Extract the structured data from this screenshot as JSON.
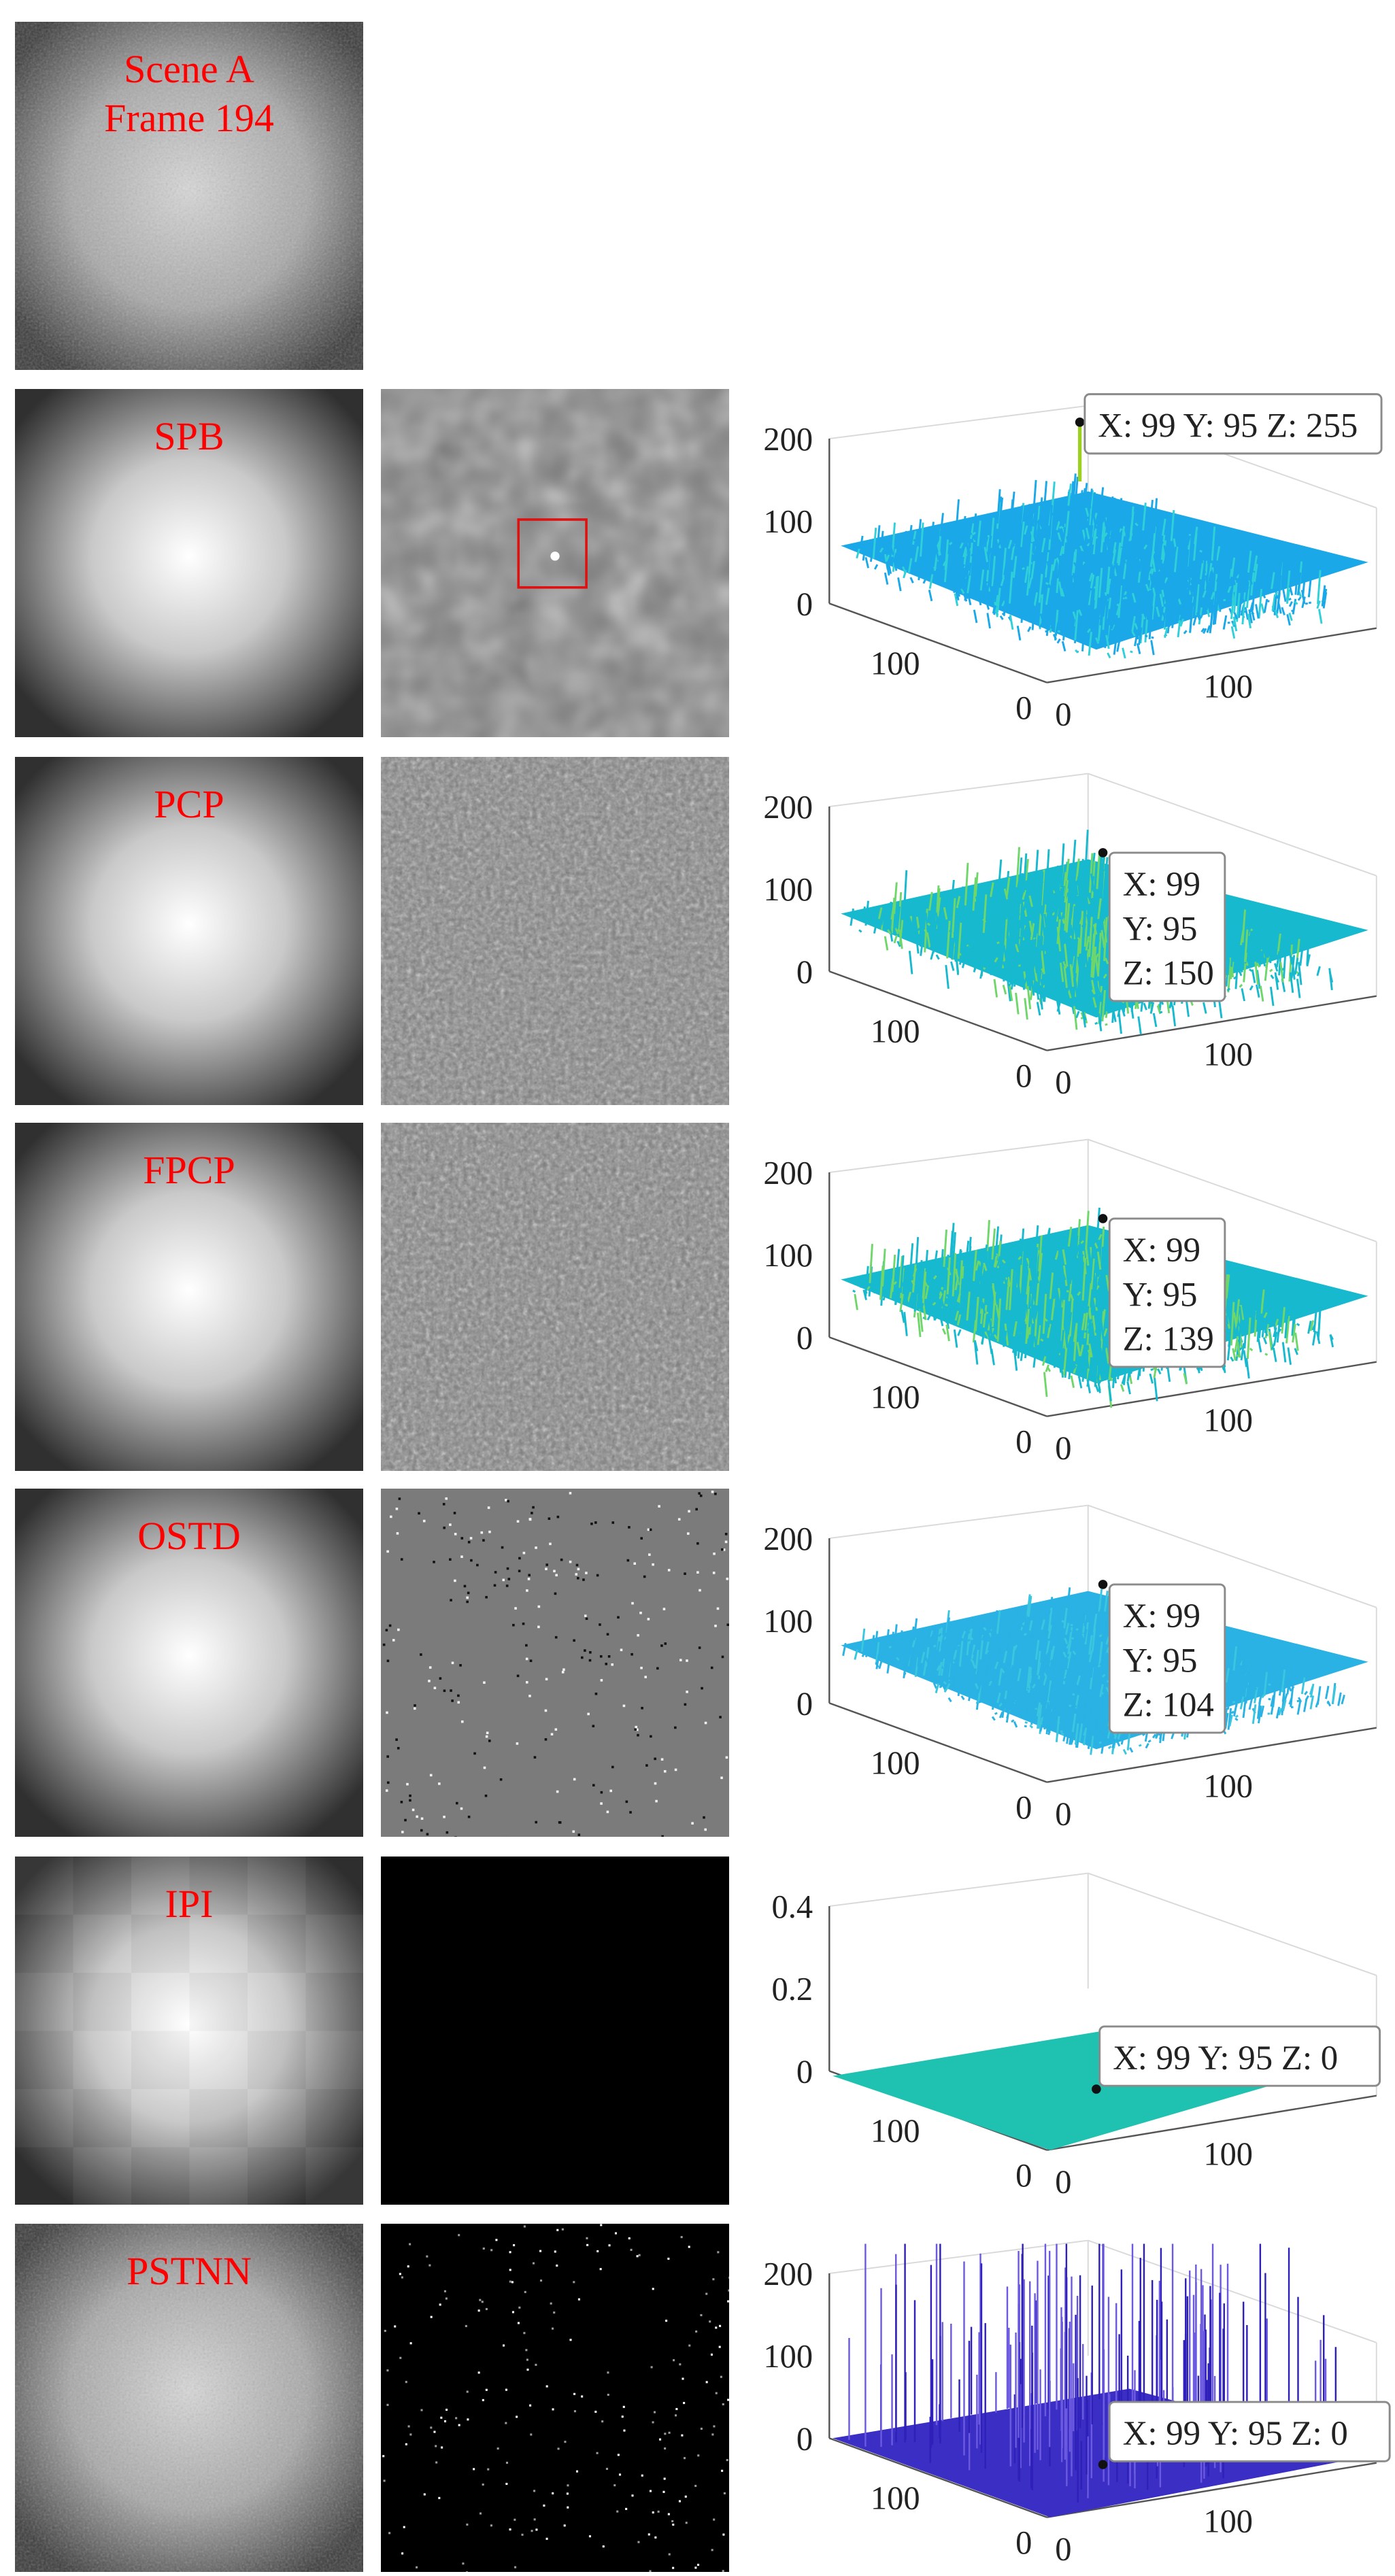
{
  "rows": [
    {
      "label": "Scene A\nFrame 194",
      "input_style": "fine-noise",
      "target": "none",
      "plot": null
    },
    {
      "label": "SPB",
      "input_style": "soft",
      "target": "blob",
      "plot": {
        "surface": "cyan",
        "zticks": [
          "200",
          "100",
          "0"
        ],
        "xtick": "0",
        "xtick2": "100",
        "ytick": "100",
        "ytick0": "0",
        "tooltip": [
          "X: 99 Y: 95 Z: 255"
        ],
        "datatip": {
          "x": 99,
          "y": 95,
          "z": 255
        }
      }
    },
    {
      "label": "PCP",
      "input_style": "soft",
      "target": "grain",
      "plot": {
        "surface": "cyan-green",
        "zticks": [
          "200",
          "100",
          "0"
        ],
        "xtick": "0",
        "xtick2": "100",
        "ytick": "100",
        "ytick0": "0",
        "tooltip": [
          "X: 99",
          "Y: 95",
          "Z: 150"
        ],
        "datatip": {
          "x": 99,
          "y": 95,
          "z": 150
        }
      }
    },
    {
      "label": "FPCP",
      "input_style": "soft",
      "target": "grain",
      "plot": {
        "surface": "cyan-green",
        "zticks": [
          "200",
          "100",
          "0"
        ],
        "xtick": "0",
        "xtick2": "100",
        "ytick": "100",
        "ytick0": "0",
        "tooltip": [
          "X: 99",
          "Y: 95",
          "Z: 139"
        ],
        "datatip": {
          "x": 99,
          "y": 95,
          "z": 139
        }
      }
    },
    {
      "label": "OSTD",
      "input_style": "soft",
      "target": "sparse-gray",
      "plot": {
        "surface": "flat-cyan",
        "zticks": [
          "200",
          "100",
          "0"
        ],
        "xtick": "0",
        "xtick2": "100",
        "ytick": "100",
        "ytick0": "0",
        "tooltip": [
          "X: 99",
          "Y: 95",
          "Z: 104"
        ],
        "datatip": {
          "x": 99,
          "y": 95,
          "z": 104
        }
      }
    },
    {
      "label": "IPI",
      "input_style": "blocky",
      "target": "black",
      "plot": {
        "surface": "flat-teal",
        "zticks": [
          "0.4",
          "0.2",
          "0"
        ],
        "xtick": "0",
        "xtick2": "100",
        "ytick": "100",
        "ytick0": "0",
        "tooltip": [
          "X: 99 Y: 95 Z: 0"
        ],
        "datatip": {
          "x": 99,
          "y": 95,
          "z": 0
        }
      }
    },
    {
      "label": "PSTNN",
      "input_style": "fine-noise",
      "target": "sparse-black",
      "plot": {
        "surface": "spikes",
        "zticks": [
          "200",
          "100",
          "0"
        ],
        "xtick": "0",
        "xtick2": "100",
        "ytick": "100",
        "ytick0": "0",
        "tooltip": [
          "X: 99 Y: 95 Z: 0"
        ],
        "datatip": {
          "x": 99,
          "y": 95,
          "z": 0
        }
      }
    }
  ],
  "colors": {
    "label": "#ff0000",
    "box": "#dd1111",
    "cyan": "#22b8e6",
    "teal": "#1fc2b0",
    "purple": "#3a2ec4"
  }
}
